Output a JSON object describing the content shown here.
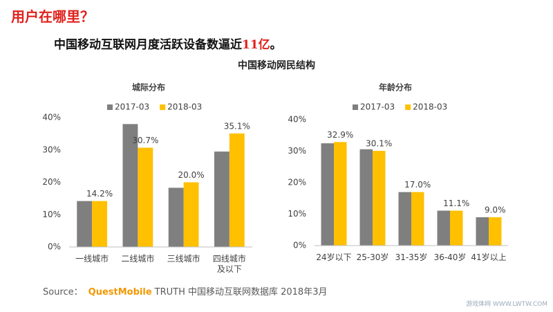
{
  "title": "用户在哪里？",
  "subtitle": [
    "中国移动互联网月度活跃设备数逼近",
    "11亿",
    "。"
  ],
  "heading": "中国移动网民结构",
  "source": {
    "prefix": "Source：",
    "brand": "QuestMobile",
    "rest": "TRUTH 中国移动互联网数据库 2018年3月"
  },
  "watermark": "游戏体网 WWW.LWTW.COM",
  "chart_data": [
    {
      "type": "bar",
      "title": "城际分布",
      "categories": [
        "一线城市",
        "二线城市",
        "三线城市",
        "四线城市及以下"
      ],
      "series": [
        {
          "name": "2017-03",
          "color": "#7f7f7f",
          "values": [
            14.2,
            38,
            18.3,
            29.5
          ]
        },
        {
          "name": "2018-03",
          "color": "#ffc000",
          "values": [
            14.2,
            30.7,
            20.0,
            35.1
          ],
          "value_labels": [
            "14.2%",
            "30.7%",
            "20.0%",
            "35.1%"
          ]
        }
      ],
      "ylim": [
        0,
        40
      ],
      "yticks": [
        {
          "value": 0,
          "label": "0%"
        },
        {
          "value": 10,
          "label": "10%"
        },
        {
          "value": 20,
          "label": "20%"
        },
        {
          "value": 30,
          "label": "30%"
        },
        {
          "value": 40,
          "label": "40%"
        }
      ],
      "grid": false,
      "legend": "top"
    },
    {
      "type": "bar",
      "title": "年龄分布",
      "categories": [
        "24岁以下",
        "25-30岁",
        "31-35岁",
        "36-40岁",
        "41岁以上"
      ],
      "series": [
        {
          "name": "2017-03",
          "color": "#7f7f7f",
          "values": [
            32.5,
            30.6,
            17.0,
            11.1,
            9.0
          ]
        },
        {
          "name": "2018-03",
          "color": "#ffc000",
          "values": [
            32.9,
            30.1,
            17.0,
            11.1,
            9.0
          ],
          "value_labels": [
            "32.9%",
            "30.1%",
            "17.0%",
            "11.1%",
            "9.0%"
          ]
        }
      ],
      "ylim": [
        0,
        40
      ],
      "yticks": [
        {
          "value": 0,
          "label": "0%"
        },
        {
          "value": 10,
          "label": "10%"
        },
        {
          "value": 20,
          "label": "20%"
        },
        {
          "value": 30,
          "label": "30%"
        },
        {
          "value": 40,
          "label": "40%"
        }
      ],
      "grid": false,
      "legend": "top"
    }
  ]
}
